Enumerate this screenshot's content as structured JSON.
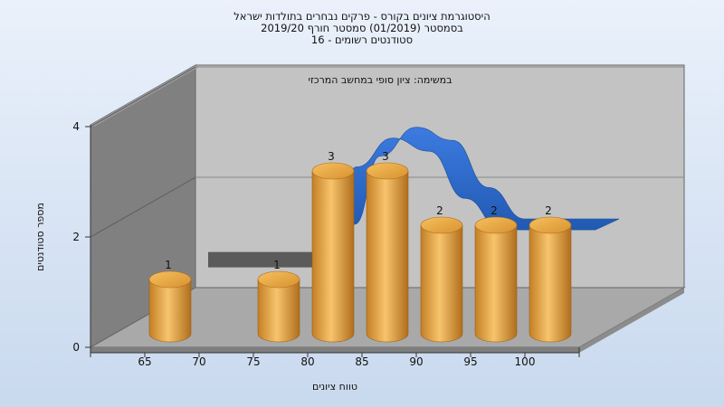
{
  "chart_data": {
    "type": "bar",
    "title_lines": [
      "היסטוגרמת ציונים בקורס - פרקים נבחרים בתולדות ישראל",
      "בסמסטר  (01/2019)  סמסטר חורף 2019/20",
      "סטודנטים רשומים - 16"
    ],
    "subtitle": "במשימה: ציון סופי במחשב המרכזי",
    "xlabel": "טווח ציונים",
    "ylabel": "מספר סטודנטים",
    "x_ticks": [
      "65",
      "70",
      "75",
      "80",
      "85",
      "90",
      "95",
      "100"
    ],
    "y_ticks": [
      "0",
      "2",
      "4"
    ],
    "ylim": [
      0,
      4
    ],
    "bars": [
      {
        "x": 65,
        "value": 1,
        "label": "1"
      },
      {
        "x": 75,
        "value": 1,
        "label": "1"
      },
      {
        "x": 80,
        "value": 3,
        "label": "3"
      },
      {
        "x": 85,
        "value": 3,
        "label": "3"
      },
      {
        "x": 90,
        "value": 2,
        "label": "2"
      },
      {
        "x": 95,
        "value": 2,
        "label": "2"
      },
      {
        "x": 100,
        "value": 2,
        "label": "2"
      }
    ],
    "grey_ribbon": [
      0.3,
      0.3,
      0.3,
      0.3
    ],
    "blue_ribbon": [
      1.9,
      3.2,
      3.75,
      3.5,
      2.6,
      2.0,
      2.0,
      2.0
    ],
    "colors": {
      "bar": "#e3a644",
      "blue_ribbon": "#2f6cc7",
      "grey_ribbon": "#555555",
      "back_wall": "#c3c3c3",
      "side_wall": "#808080",
      "floor": "#a9a9a9",
      "background": "#dfe9f6"
    },
    "grid": true
  }
}
